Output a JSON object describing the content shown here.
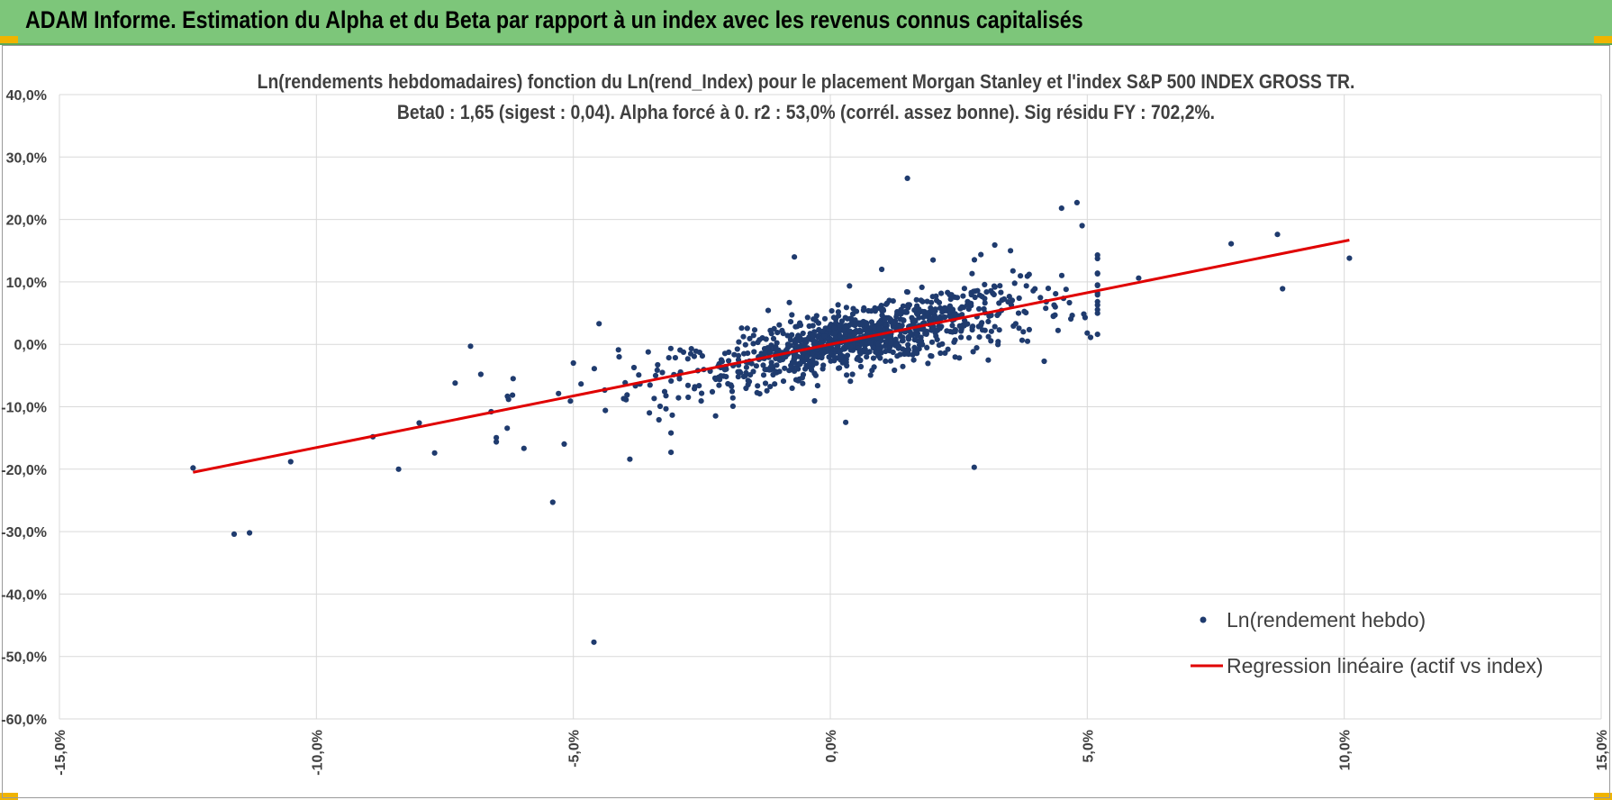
{
  "header": {
    "title": "ADAM Informe. Estimation du Alpha et du Beta par rapport à un index avec les revenus connus capitalisés"
  },
  "colors": {
    "header_bg": "#7dc67a",
    "point": "#1f3b6e",
    "regression": "#e00000",
    "grid": "#d9d9d9"
  },
  "chart_data": {
    "type": "scatter",
    "title_line1": "Ln(rendements hebdomadaires) fonction du Ln(rend_Index) pour le placement Morgan Stanley et l'index S&P 500 INDEX GROSS TR.",
    "title_line2": "Beta0 : 1,65 (sigest : 0,04). Alpha forcé à 0. r2 : 53,0% (corrél. assez bonne). Sig résidu FY : 702,2%.",
    "xlabel": "",
    "ylabel": "",
    "xlim": [
      -15,
      15
    ],
    "ylim": [
      -60,
      40
    ],
    "x_ticks": [
      -15,
      -10,
      -5,
      0,
      5,
      10,
      15
    ],
    "x_tick_labels": [
      "-15,0%",
      "-10,0%",
      "-5,0%",
      "0,0%",
      "5,0%",
      "10,0%",
      "15,0%"
    ],
    "y_ticks": [
      40,
      30,
      20,
      10,
      0,
      -10,
      -20,
      -30,
      -40,
      -50,
      -60
    ],
    "y_tick_labels": [
      "40,0%",
      "30,0%",
      "20,0%",
      "10,0%",
      "0,0%",
      "-10,0%",
      "-20,0%",
      "-30,0%",
      "-40,0%",
      "-50,0%",
      "-60,0%"
    ],
    "grid": true,
    "legend_position": "bottom-right",
    "series": [
      {
        "name": "Ln(rendement hebdo)",
        "kind": "scatter",
        "point_count": 1100,
        "outliers": [
          {
            "x": -12.4,
            "y": -19.8
          },
          {
            "x": -11.6,
            "y": -30.4
          },
          {
            "x": -11.3,
            "y": -30.2
          },
          {
            "x": -10.5,
            "y": -18.8
          },
          {
            "x": -8.9,
            "y": -14.8
          },
          {
            "x": -8.4,
            "y": -20.0
          },
          {
            "x": -8.0,
            "y": -12.6
          },
          {
            "x": -7.7,
            "y": -17.4
          },
          {
            "x": -7.3,
            "y": -6.2
          },
          {
            "x": -7.0,
            "y": -0.3
          },
          {
            "x": -6.8,
            "y": -4.8
          },
          {
            "x": -6.6,
            "y": -10.8
          },
          {
            "x": -5.4,
            "y": -25.3
          },
          {
            "x": -5.0,
            "y": -3.0
          },
          {
            "x": -4.6,
            "y": -47.7
          },
          {
            "x": -4.5,
            "y": 3.3
          },
          {
            "x": -3.9,
            "y": -18.4
          },
          {
            "x": -3.1,
            "y": -17.3
          },
          {
            "x": -3.1,
            "y": -14.2
          },
          {
            "x": -0.7,
            "y": 14.0
          },
          {
            "x": 0.3,
            "y": -12.5
          },
          {
            "x": 1.0,
            "y": 12.0
          },
          {
            "x": 1.5,
            "y": 26.6
          },
          {
            "x": 2.0,
            "y": 13.5
          },
          {
            "x": 2.8,
            "y": -19.7
          },
          {
            "x": 3.2,
            "y": 15.9
          },
          {
            "x": 4.5,
            "y": 21.8
          },
          {
            "x": 4.8,
            "y": 22.7
          },
          {
            "x": 4.9,
            "y": 19.0
          },
          {
            "x": 5.0,
            "y": 1.8
          },
          {
            "x": 5.2,
            "y": 14.3
          },
          {
            "x": 6.0,
            "y": 10.6
          },
          {
            "x": 7.8,
            "y": 16.1
          },
          {
            "x": 8.7,
            "y": 17.6
          },
          {
            "x": 8.8,
            "y": 8.9
          },
          {
            "x": 10.1,
            "y": 13.8
          }
        ]
      },
      {
        "name": "Regression linéaire (actif vs index)",
        "kind": "line",
        "beta": 1.65,
        "alpha": 0,
        "x": [
          -12.4,
          10.1
        ],
        "y": [
          -20.5,
          16.7
        ]
      }
    ]
  }
}
